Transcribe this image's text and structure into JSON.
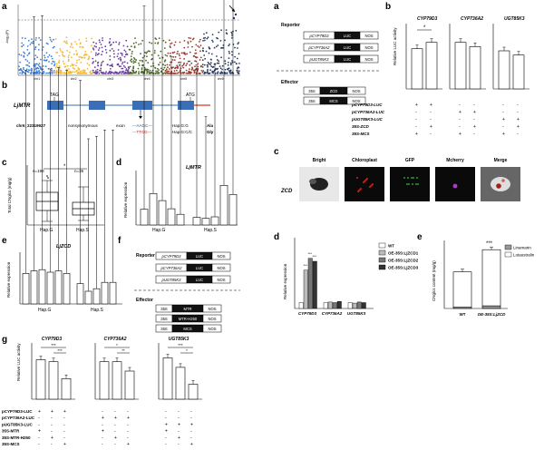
{
  "panel_labels": {
    "a": "a",
    "b": "b",
    "c": "c",
    "d": "d",
    "e": "e",
    "f": "f",
    "g": "g",
    "a2": "a",
    "b2": "b",
    "c2": "c",
    "d2": "d",
    "e2": "e"
  },
  "manhattan": {
    "ylabel": "-log₁₀(P)",
    "colors": [
      "#3f7fd8",
      "#f5b82e",
      "#6a3c9e",
      "#4f6a2a",
      "#9c3a2e",
      "#2b3b63"
    ],
    "chrom_labels": [
      "chr1",
      "chr2",
      "chr3",
      "chr4",
      "chr5",
      "chr6"
    ]
  },
  "gene_model": {
    "gene_name": "LjMTR",
    "tag_label": "TAG",
    "atg_label": "ATG",
    "snp_id": "chr6_22319927",
    "region_1": "nonsynonymous",
    "region_2": "exon",
    "hap_g_seq": "---AAGC---",
    "hap_s_seq": "---TTCG---",
    "hap_g_geno": "Hap.G:G",
    "hap_s_geno": "Hap.G:C/C",
    "aa_1": "Ala",
    "aa_2": "Gly"
  },
  "boxplot": {
    "ylabel": "Total CNglcs (mg/g)",
    "n_g": "n=198",
    "n_s": "n=35",
    "sig": "*",
    "categories": [
      "Hap.G",
      "Hap.S"
    ]
  },
  "expr_mtr": {
    "title": "LjMTR",
    "ylabel": "Relative expression",
    "groups": [
      "Hap.G",
      "Hap.S"
    ]
  },
  "expr_zcd": {
    "title": "LjZCD",
    "ylabel": "Relative expression",
    "groups": [
      "Hap.G",
      "Hap.S"
    ]
  },
  "reporter_a": {
    "reporter_label": "Reporter",
    "effector_label": "Effector",
    "promoters": [
      "pCYP79D3",
      "pCYP736A2",
      "pUGT85K3"
    ],
    "luc": "LUC",
    "nos": "NOS",
    "eff_rows": [
      [
        "35S",
        "ZCD",
        "NOS"
      ],
      [
        "35S",
        "MCS",
        "NOS"
      ]
    ]
  },
  "luc_b": {
    "ylabel": "Relative LUC activity",
    "genes": [
      "CYP79D3",
      "CYP736A2",
      "UGT85K3"
    ],
    "sig": "*",
    "rows": [
      "pCYP79D3-LUC",
      "pCYP736A2-LUC",
      "pUGT85K3-LUC",
      "35S-ZCD",
      "35S-MCS"
    ],
    "signs": [
      [
        "+",
        "+",
        "-",
        "-",
        "-",
        "-"
      ],
      [
        "-",
        "-",
        "+",
        "+",
        "-",
        "-"
      ],
      [
        "-",
        "-",
        "-",
        "-",
        "+",
        "+"
      ],
      [
        "-",
        "+",
        "-",
        "+",
        "-",
        "+"
      ],
      [
        "+",
        "-",
        "+",
        "-",
        "+",
        "-"
      ]
    ]
  },
  "microscopy": {
    "row_label": "ZCD",
    "columns": [
      "Bright",
      "Chloroplast",
      "GFP",
      "Mcherry",
      "Merge"
    ]
  },
  "expr_d2": {
    "ylabel": "Relative expression",
    "genes": [
      "CYP79D3",
      "CYP736A2",
      "UGT85K3"
    ],
    "legend": [
      "WT",
      "OE-35S:LjZCD1",
      "OE-35S:LjZCD2",
      "OE-35S:LjZCD3"
    ],
    "sig": "***"
  },
  "cnglcs_e2": {
    "ylabel": "CNglcs content (mg/g)",
    "categories": [
      "WT",
      "OE-35S:LjZCD"
    ],
    "legend": [
      "Linamarin",
      "Lotaustralin"
    ],
    "sig": "***"
  },
  "reporter_f": {
    "reporter_label": "Reporter",
    "effector_label": "Effector",
    "promoters": [
      "pCYP79D3",
      "pCYP736A2",
      "pUGT85K3"
    ],
    "luc": "LUC",
    "nos": "NOS",
    "eff_rows": [
      [
        "35S",
        "MTR",
        "NOS"
      ],
      [
        "35S",
        "MTR-H250",
        "NOS"
      ],
      [
        "35S",
        "MCS",
        "NOS"
      ]
    ]
  },
  "luc_g": {
    "ylabel": "Relative LUC activity",
    "genes": [
      "CYP79D3",
      "CYP736A2",
      "UGT85K3"
    ],
    "rows": [
      "pCYP79D3-LUC",
      "pCYP736A2-LUC",
      "pUGT85K3-LUC",
      "35S-MTR",
      "35S-MTR-H250",
      "35S-MCS"
    ],
    "sig": [
      "***",
      "***",
      "*",
      "**",
      "***",
      "*"
    ]
  },
  "chart_data": [
    {
      "type": "bar",
      "title": "LjMTR",
      "ylabel": "Relative expression",
      "categories": [
        "G1",
        "G2",
        "G3",
        "G4",
        "G5",
        "S1",
        "S2",
        "S3",
        "S4",
        "S5"
      ],
      "values": [
        3.1,
        6.2,
        4.8,
        3.2,
        2.1,
        1.5,
        1.3,
        1.6,
        7.8,
        6.0
      ],
      "ylim": [
        0,
        10
      ]
    },
    {
      "type": "bar",
      "title": "LjZCD",
      "ylabel": "Relative expression",
      "categories": [
        "G1",
        "G2",
        "G3",
        "G4",
        "G5",
        "G6",
        "S1",
        "S2",
        "S3",
        "S4",
        "S5"
      ],
      "values": [
        1.2,
        1.3,
        1.35,
        1.25,
        1.3,
        1.2,
        0.8,
        0.5,
        0.6,
        0.85,
        0.85
      ],
      "ylim": [
        0,
        2
      ]
    },
    {
      "type": "bar",
      "title": "",
      "ylabel": "Relative LUC activity",
      "categories": [
        "CYP79D3 MCS",
        "CYP79D3 ZCD",
        "CYP736A2 MCS",
        "CYP736A2 ZCD",
        "UGT85K3 MCS",
        "UGT85K3 ZCD"
      ],
      "values": [
        0.95,
        1.1,
        1.1,
        1.0,
        0.9,
        0.8
      ],
      "ylim": [
        0,
        1.5
      ]
    },
    {
      "type": "bar",
      "title": "",
      "ylabel": "Relative expression",
      "categories": [
        "CYP79D3",
        "CYP736A2",
        "UGT85K3"
      ],
      "series": [
        {
          "name": "WT",
          "values": [
            1.0,
            1.0,
            1.0
          ]
        },
        {
          "name": "OE-35S:LjZCD1",
          "values": [
            6.5,
            1.1,
            0.9
          ]
        },
        {
          "name": "OE-35S:LjZCD2",
          "values": [
            8.5,
            1.0,
            1.1
          ]
        },
        {
          "name": "OE-35S:LjZCD3",
          "values": [
            8.0,
            1.2,
            1.0
          ]
        }
      ],
      "ylim": [
        0,
        12
      ]
    },
    {
      "type": "bar",
      "title": "",
      "ylabel": "CNglcs content (mg/g)",
      "categories": [
        "WT",
        "OE-35S:LjZCD"
      ],
      "series": [
        {
          "name": "Linamarin",
          "values": [
            0.5,
            1.0
          ]
        },
        {
          "name": "Lotaustralin",
          "values": [
            13.5,
            21.5
          ]
        }
      ],
      "ylim": [
        0,
        25
      ]
    },
    {
      "type": "bar",
      "title": "",
      "ylabel": "Relative LUC activity",
      "categories": [
        "CYP79D3 MTR",
        "CYP79D3 MTR-H250",
        "CYP79D3 MCS",
        "CYP736A2 MTR",
        "CYP736A2 MTR-H250",
        "CYP736A2 MCS",
        "UGT85K3 MTR",
        "UGT85K3 MTR-H250",
        "UGT85K3 MCS"
      ],
      "values": [
        1.05,
        1.0,
        0.55,
        1.0,
        1.0,
        0.75,
        1.1,
        0.85,
        0.4
      ],
      "ylim": [
        0,
        1.5
      ]
    }
  ]
}
